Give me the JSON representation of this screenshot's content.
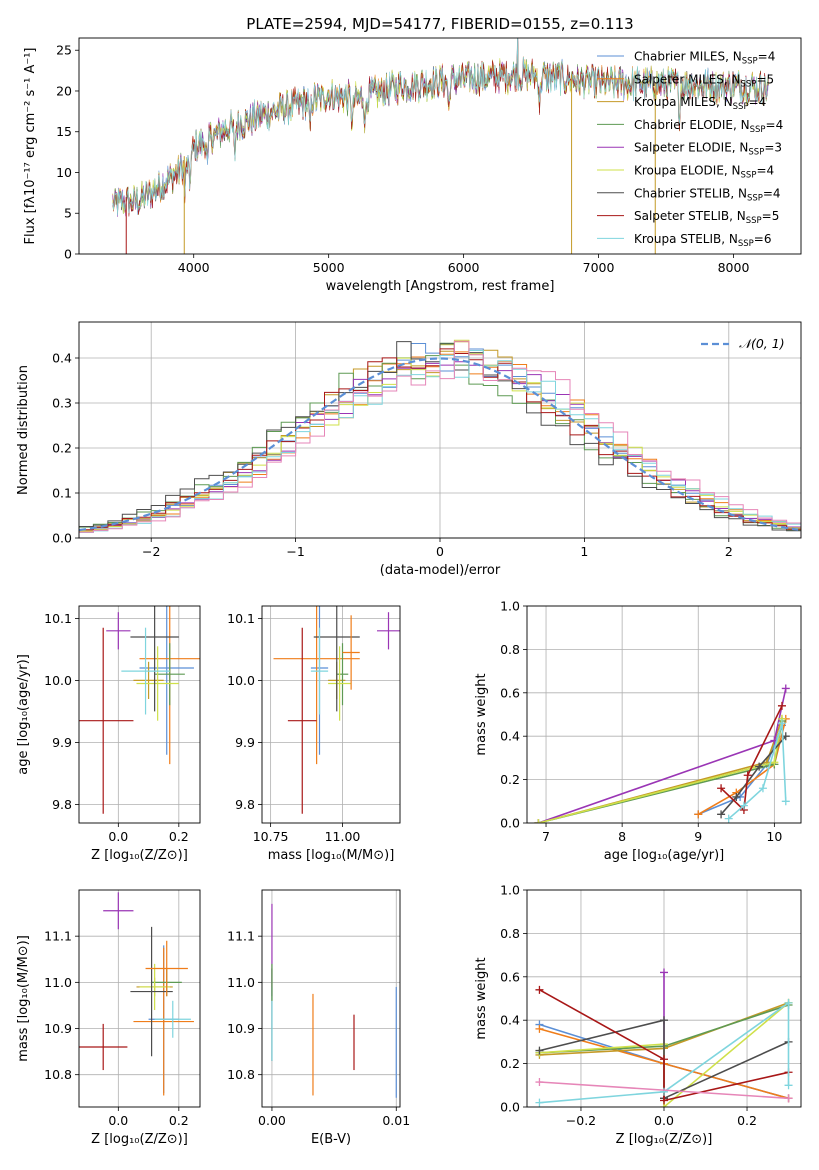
{
  "figure": {
    "title": "PLATE=2594, MJD=54177, FIBERID=0155, z=0.113"
  },
  "legend_models": [
    {
      "label": "Chabrier MILES, N",
      "sub": "SSP",
      "suffix": "=4",
      "color": "#5b8fd6"
    },
    {
      "label": "Salpeter MILES, N",
      "sub": "SSP",
      "suffix": "=5",
      "color": "#ef7d1a"
    },
    {
      "label": "Kroupa MILES, N",
      "sub": "SSP",
      "suffix": "=4",
      "color": "#c49a27"
    },
    {
      "label": "Chabrier ELODIE, N",
      "sub": "SSP",
      "suffix": "=4",
      "color": "#5e9a53"
    },
    {
      "label": "Salpeter ELODIE, N",
      "sub": "SSP",
      "suffix": "=3",
      "color": "#9a35b5"
    },
    {
      "label": "Kroupa ELODIE, N",
      "sub": "SSP",
      "suffix": "=4",
      "color": "#cfe04a"
    },
    {
      "label": "Chabrier STELIB, N",
      "sub": "SSP",
      "suffix": "=4",
      "color": "#4d4d4d"
    },
    {
      "label": "Salpeter STELIB, N",
      "sub": "SSP",
      "suffix": "=5",
      "color": "#a81717"
    },
    {
      "label": "Kroupa STELIB, N",
      "sub": "SSP",
      "suffix": "=6",
      "color": "#7fd5de"
    }
  ],
  "chart_data": [
    {
      "id": "spectrum",
      "type": "line",
      "title": "PLATE=2594, MJD=54177, FIBERID=0155, z=0.113",
      "xlabel": "wavelength [Angstrom, rest frame]",
      "ylabel": "Flux [fλ10⁻¹⁷ erg cm⁻² s⁻¹ A⁻¹]",
      "xlim": [
        3150,
        8500
      ],
      "ylim": [
        0,
        26.5
      ],
      "xticks": [
        4000,
        5000,
        6000,
        7000,
        8000
      ],
      "yticks": [
        0,
        5,
        10,
        15,
        20,
        25
      ],
      "grid": false,
      "legend": "top-right",
      "x_range_data": [
        3400,
        8260
      ],
      "continuum": [
        [
          3400,
          6.2
        ],
        [
          3600,
          6.5
        ],
        [
          3800,
          9
        ],
        [
          3950,
          11
        ],
        [
          4000,
          13
        ],
        [
          4200,
          15
        ],
        [
          4500,
          17
        ],
        [
          5000,
          19.5
        ],
        [
          5200,
          19
        ],
        [
          5500,
          20.5
        ],
        [
          6000,
          21.5
        ],
        [
          6500,
          22
        ],
        [
          7000,
          21
        ],
        [
          7500,
          20.8
        ],
        [
          8000,
          20.6
        ],
        [
          8260,
          20.4
        ]
      ],
      "absorption_lines": [
        3934,
        3969,
        4102,
        4304,
        4861,
        5175,
        5270,
        5890,
        6563,
        7600
      ],
      "emission_lines": [
        6400
      ]
    },
    {
      "id": "residuals",
      "type": "histogram",
      "xlabel": "(data-model)/error",
      "ylabel": "Normed distribution",
      "xlim": [
        -2.5,
        2.5
      ],
      "ylim": [
        0,
        0.48
      ],
      "xticks": [
        -2,
        -1,
        0,
        1,
        2
      ],
      "yticks": [
        0.0,
        0.1,
        0.2,
        0.3,
        0.4
      ],
      "grid": true,
      "bin_width": 0.1,
      "reference_curve": {
        "name": "N(0,1)",
        "mean": 0,
        "sigma": 1,
        "color": "#5b8fd6",
        "dash": true
      },
      "legend": "top-right"
    },
    {
      "id": "age_vs_Z",
      "type": "errorbar",
      "xlabel": "Z [log₁₀(Z/Z⊙)]",
      "ylabel": "age  [log₁₀(age/yr)]",
      "xlim": [
        -0.13,
        0.27
      ],
      "ylim": [
        9.77,
        10.12
      ],
      "xticks": [
        0.0,
        0.2
      ],
      "yticks": [
        9.8,
        9.9,
        10.0,
        10.1
      ],
      "grid": true,
      "points": [
        {
          "model": 0,
          "x": 0.16,
          "y": 10.02,
          "xerr": 0.09,
          "yerr": 0.14
        },
        {
          "model": 1,
          "x": 0.17,
          "y": 10.035,
          "xerr": 0.1,
          "yerr": 0.17
        },
        {
          "model": 2,
          "x": 0.1,
          "y": 10.0,
          "xerr": 0.05,
          "yerr": 0.03
        },
        {
          "model": 3,
          "x": 0.17,
          "y": 10.01,
          "xerr": 0.05,
          "yerr": 0.05
        },
        {
          "model": 4,
          "x": 0.0,
          "y": 10.08,
          "xerr": 0.04,
          "yerr": 0.03
        },
        {
          "model": 5,
          "x": 0.13,
          "y": 9.995,
          "xerr": 0.07,
          "yerr": 0.06
        },
        {
          "model": 6,
          "x": 0.12,
          "y": 10.07,
          "xerr": 0.08,
          "yerr": 0.12
        },
        {
          "model": 7,
          "x": -0.05,
          "y": 9.935,
          "xerr": 0.1,
          "yerr": 0.15
        },
        {
          "model": 8,
          "x": 0.09,
          "y": 10.015,
          "xerr": 0.08,
          "yerr": 0.07
        }
      ]
    },
    {
      "id": "age_vs_mass",
      "type": "errorbar",
      "xlabel": "mass [log₁₀(M/M⊙)]",
      "ylabel": "",
      "xlim": [
        10.72,
        11.2
      ],
      "ylim": [
        9.77,
        10.12
      ],
      "xticks": [
        10.75,
        11.0
      ],
      "yticks": [
        9.8,
        9.9,
        10.0,
        10.1
      ],
      "grid": true,
      "points": [
        {
          "model": 0,
          "x": 10.92,
          "y": 10.02,
          "xerr": 0.03,
          "yerr": 0.14
        },
        {
          "model": 1,
          "x": 10.91,
          "y": 10.035,
          "xerr": 0.15,
          "yerr": 0.17
        },
        {
          "model": 2,
          "x": 10.98,
          "y": 10.0,
          "xerr": 0.03,
          "yerr": 0.03
        },
        {
          "model": 3,
          "x": 11.0,
          "y": 10.01,
          "xerr": 0.02,
          "yerr": 0.05
        },
        {
          "model": 4,
          "x": 11.16,
          "y": 10.08,
          "xerr": 0.04,
          "yerr": 0.03
        },
        {
          "model": 5,
          "x": 10.99,
          "y": 9.995,
          "xerr": 0.04,
          "yerr": 0.06
        },
        {
          "model": 6,
          "x": 10.98,
          "y": 10.07,
          "xerr": 0.08,
          "yerr": 0.12
        },
        {
          "model": 7,
          "x": 10.86,
          "y": 9.935,
          "xerr": 0.05,
          "yerr": 0.15
        },
        {
          "model": 8,
          "x": 10.92,
          "y": 10.015,
          "xerr": 0.03,
          "yerr": 0.07
        },
        {
          "model": 1,
          "x": 11.03,
          "y": 10.045,
          "xerr": 0.03,
          "yerr": 0.06
        }
      ]
    },
    {
      "id": "weight_vs_age",
      "type": "line",
      "xlabel": "age  [log₁₀(age/yr)]",
      "ylabel": "mass weight",
      "xlim": [
        6.75,
        10.35
      ],
      "ylim": [
        0,
        1.0
      ],
      "xticks": [
        7,
        8,
        9,
        10
      ],
      "yticks": [
        0.0,
        0.2,
        0.4,
        0.6,
        0.8,
        1.0
      ],
      "grid": true,
      "series": [
        {
          "model": 0,
          "points": [
            [
              9.0,
              0.04
            ],
            [
              9.55,
              0.12
            ],
            [
              9.9,
              0.27
            ],
            [
              10.1,
              0.45
            ]
          ]
        },
        {
          "model": 1,
          "points": [
            [
              9.0,
              0.04
            ],
            [
              9.5,
              0.14
            ],
            [
              10.0,
              0.27
            ],
            [
              10.15,
              0.48
            ]
          ]
        },
        {
          "model": 2,
          "points": [
            [
              6.9,
              0.0
            ],
            [
              9.9,
              0.28
            ],
            [
              10.1,
              0.48
            ]
          ]
        },
        {
          "model": 3,
          "points": [
            [
              6.9,
              0.0
            ],
            [
              10.0,
              0.27
            ],
            [
              10.1,
              0.47
            ]
          ]
        },
        {
          "model": 4,
          "points": [
            [
              6.9,
              0.0
            ],
            [
              10.0,
              0.38
            ],
            [
              10.15,
              0.62
            ]
          ]
        },
        {
          "model": 5,
          "points": [
            [
              6.9,
              0.0
            ],
            [
              10.0,
              0.28
            ],
            [
              10.1,
              0.48
            ]
          ]
        },
        {
          "model": 6,
          "points": [
            [
              9.3,
              0.04
            ],
            [
              9.5,
              0.12
            ],
            [
              9.8,
              0.26
            ],
            [
              10.15,
              0.4
            ]
          ]
        },
        {
          "model": 7,
          "points": [
            [
              9.3,
              0.16
            ],
            [
              9.6,
              0.06
            ],
            [
              9.65,
              0.22
            ],
            [
              10.1,
              0.54
            ]
          ]
        },
        {
          "model": 8,
          "points": [
            [
              9.4,
              0.02
            ],
            [
              9.6,
              0.08
            ],
            [
              9.85,
              0.16
            ],
            [
              10.1,
              0.46
            ],
            [
              10.15,
              0.1
            ]
          ]
        }
      ]
    },
    {
      "id": "mass_vs_Z",
      "type": "errorbar",
      "xlabel": "Z [log₁₀(Z/Z⊙)]",
      "ylabel": "mass [log₁₀(M/M⊙)]",
      "xlim": [
        -0.13,
        0.27
      ],
      "ylim": [
        10.73,
        11.2
      ],
      "xticks": [
        0.0,
        0.2
      ],
      "yticks": [
        10.8,
        10.9,
        11.0,
        11.1
      ],
      "grid": true,
      "points": [
        {
          "model": 0,
          "x": 0.15,
          "y": 10.92,
          "xerr": 0.05,
          "yerr": 0.16
        },
        {
          "model": 1,
          "x": 0.15,
          "y": 10.915,
          "xerr": 0.1,
          "yerr": 0.16
        },
        {
          "model": 2,
          "x": 0.12,
          "y": 10.99,
          "xerr": 0.06,
          "yerr": 0.02
        },
        {
          "model": 3,
          "x": 0.16,
          "y": 11.0,
          "xerr": 0.05,
          "yerr": 0.03
        },
        {
          "model": 4,
          "x": 0.0,
          "y": 11.155,
          "xerr": 0.05,
          "yerr": 0.04
        },
        {
          "model": 5,
          "x": 0.12,
          "y": 10.99,
          "xerr": 0.05,
          "yerr": 0.05
        },
        {
          "model": 6,
          "x": 0.11,
          "y": 10.98,
          "xerr": 0.07,
          "yerr": 0.14
        },
        {
          "model": 7,
          "x": -0.05,
          "y": 10.86,
          "xerr": 0.08,
          "yerr": 0.05
        },
        {
          "model": 8,
          "x": 0.18,
          "y": 10.92,
          "xerr": 0.06,
          "yerr": 0.04
        },
        {
          "model": 1,
          "x": 0.16,
          "y": 11.03,
          "xerr": 0.07,
          "yerr": 0.06
        }
      ]
    },
    {
      "id": "mass_vs_ebv",
      "type": "errorbar",
      "xlabel": "E(B-V)",
      "ylabel": "",
      "xlim": [
        -0.0008,
        0.0103
      ],
      "ylim": [
        10.73,
        11.2
      ],
      "xticks": [
        0.0,
        0.01
      ],
      "yticks": [
        10.8,
        10.9,
        11.0,
        11.1
      ],
      "grid": true,
      "points": [
        {
          "model": 4,
          "x": 0.0,
          "y": 11.07,
          "xerr": 0.0,
          "yerr": 0.1
        },
        {
          "model": 6,
          "x": 0.0,
          "y": 10.93,
          "xerr": 0.0,
          "yerr": 0.1
        },
        {
          "model": 8,
          "x": 0.0,
          "y": 10.91,
          "xerr": 0.0,
          "yerr": 0.08
        },
        {
          "model": 3,
          "x": 0.0,
          "y": 11.0,
          "xerr": 0.0,
          "yerr": 0.04
        },
        {
          "model": 1,
          "x": 0.0033,
          "y": 10.865,
          "xerr": 0.0,
          "yerr": 0.11
        },
        {
          "model": 7,
          "x": 0.0066,
          "y": 10.87,
          "xerr": 0.0,
          "yerr": 0.06
        },
        {
          "model": 0,
          "x": 0.01,
          "y": 10.87,
          "xerr": 0.0,
          "yerr": 0.12
        }
      ]
    },
    {
      "id": "weight_vs_Z",
      "type": "line",
      "xlabel": "Z [log₁₀(Z/Z⊙)]",
      "ylabel": "mass weight",
      "xlim": [
        -0.33,
        0.33
      ],
      "ylim": [
        0,
        1.0
      ],
      "xticks": [
        -0.2,
        0.0,
        0.2
      ],
      "yticks": [
        0.0,
        0.2,
        0.4,
        0.6,
        0.8,
        1.0
      ],
      "grid": true,
      "series": [
        {
          "model": 0,
          "points": [
            [
              -0.3,
              0.38
            ],
            [
              0.0,
              0.2
            ],
            [
              0.3,
              0.04
            ]
          ]
        },
        {
          "model": 1,
          "points": [
            [
              -0.3,
              0.36
            ],
            [
              0.0,
              0.2
            ],
            [
              0.3,
              0.04
            ]
          ]
        },
        {
          "model": 2,
          "points": [
            [
              -0.3,
              0.24
            ],
            [
              0.0,
              0.27
            ],
            [
              0.3,
              0.48
            ]
          ]
        },
        {
          "model": 3,
          "points": [
            [
              -0.3,
              0.25
            ],
            [
              0.0,
              0.28
            ],
            [
              0.3,
              0.47
            ]
          ]
        },
        {
          "model": 4,
          "points": [
            [
              0.0,
              0.62
            ],
            [
              0.0,
              0.04
            ]
          ]
        },
        {
          "model": 5,
          "points": [
            [
              -0.3,
              0.25
            ],
            [
              0.0,
              0.29
            ],
            [
              0.0,
              0.0
            ],
            [
              0.3,
              0.48
            ]
          ]
        },
        {
          "model": 6,
          "points": [
            [
              -0.3,
              0.26
            ],
            [
              0.0,
              0.4
            ],
            [
              0.0,
              0.04
            ],
            [
              0.3,
              0.3
            ]
          ]
        },
        {
          "model": 7,
          "points": [
            [
              -0.3,
              0.54
            ],
            [
              0.0,
              0.22
            ],
            [
              0.0,
              0.03
            ],
            [
              0.3,
              0.16
            ]
          ]
        },
        {
          "model": 8,
          "points": [
            [
              -0.3,
              0.02
            ],
            [
              0.0,
              0.07
            ],
            [
              0.3,
              0.48
            ],
            [
              0.3,
              0.1
            ]
          ]
        },
        {
          "model": 9,
          "points": [
            [
              -0.3,
              0.115
            ],
            [
              0.3,
              0.04
            ]
          ]
        }
      ]
    }
  ],
  "extra_colors": {
    "pink": "#e686b8"
  }
}
